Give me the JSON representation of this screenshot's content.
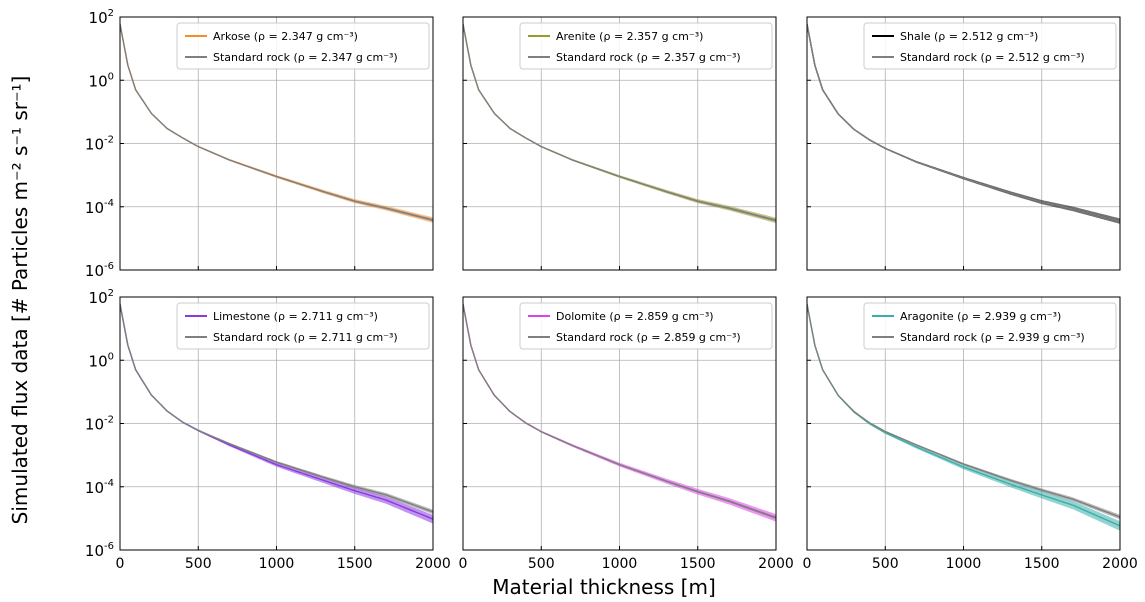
{
  "figure": {
    "ylabel": "Simulated flux data [# Particles m⁻² s⁻¹ sr⁻¹]",
    "xlabel": "Material thickness [m]"
  },
  "chart_data": [
    {
      "type": "line",
      "panel": "top-left",
      "x": [
        0,
        50,
        100,
        200,
        300,
        400,
        500,
        700,
        1000,
        1300,
        1500,
        1700,
        2000
      ],
      "xlim": [
        0,
        2000
      ],
      "ylim": [
        1e-06,
        100
      ],
      "yscale": "log",
      "grid": true,
      "legend_position": "top-right",
      "xticks": [
        "0",
        "500",
        "1000",
        "1500",
        "2000"
      ],
      "yticks": [
        {
          "base": "10",
          "exp": "2"
        },
        {
          "base": "10",
          "exp": "0"
        },
        {
          "base": "10",
          "exp": "-2"
        },
        {
          "base": "10",
          "exp": "-4"
        },
        {
          "base": "10",
          "exp": "-6"
        }
      ],
      "series": [
        {
          "name": "Arkose (ρ = 2.347 g cm⁻³)",
          "color": "#f28e2b",
          "values": [
            60,
            3,
            0.5,
            0.09,
            0.03,
            0.015,
            0.008,
            0.003,
            0.0009,
            0.0003,
            0.00015,
            9e-05,
            3.8e-05
          ],
          "band": [
            0.82,
            1.22
          ]
        },
        {
          "name": "Standard rock (ρ = 2.347 g cm⁻³)",
          "color": "#7f7f7f",
          "values": [
            60,
            3,
            0.5,
            0.09,
            0.03,
            0.015,
            0.008,
            0.003,
            0.0009,
            0.0003,
            0.00015,
            9e-05,
            3.8e-05
          ],
          "band": [
            0.9,
            1.1
          ]
        }
      ]
    },
    {
      "type": "line",
      "panel": "top-middle",
      "x": [
        0,
        50,
        100,
        200,
        300,
        400,
        500,
        700,
        1000,
        1300,
        1500,
        1700,
        2000
      ],
      "xlim": [
        0,
        2000
      ],
      "ylim": [
        1e-06,
        100
      ],
      "yscale": "log",
      "grid": true,
      "legend_position": "top-right",
      "xticks": [
        "0",
        "500",
        "1000",
        "1500",
        "2000"
      ],
      "series": [
        {
          "name": "Arenite (ρ = 2.357 g cm⁻³)",
          "color": "#9a9a2b",
          "values": [
            60,
            3,
            0.5,
            0.09,
            0.03,
            0.015,
            0.008,
            0.003,
            0.0009,
            0.0003,
            0.00015,
            9e-05,
            3.7e-05
          ],
          "band": [
            0.82,
            1.22
          ]
        },
        {
          "name": "Standard rock (ρ = 2.357 g cm⁻³)",
          "color": "#7f7f7f",
          "values": [
            60,
            3,
            0.5,
            0.09,
            0.03,
            0.015,
            0.008,
            0.003,
            0.0009,
            0.0003,
            0.00015,
            9e-05,
            3.7e-05
          ],
          "band": [
            0.9,
            1.1
          ]
        }
      ]
    },
    {
      "type": "line",
      "panel": "top-right",
      "x": [
        0,
        50,
        100,
        200,
        300,
        400,
        500,
        700,
        1000,
        1300,
        1500,
        1700,
        2000
      ],
      "xlim": [
        0,
        2000
      ],
      "ylim": [
        1e-06,
        100
      ],
      "yscale": "log",
      "grid": true,
      "legend_position": "top-right",
      "xticks": [
        "0",
        "500",
        "1000",
        "1500",
        "2000"
      ],
      "series": [
        {
          "name": "Shale (ρ = 2.512 g cm⁻³)",
          "color": "#000000",
          "values": [
            60,
            3,
            0.5,
            0.085,
            0.028,
            0.013,
            0.007,
            0.0026,
            0.0008,
            0.00027,
            0.00014,
            8.5e-05,
            3.5e-05
          ],
          "band": [
            0.82,
            1.22
          ]
        },
        {
          "name": "Standard rock (ρ = 2.512 g cm⁻³)",
          "color": "#7f7f7f",
          "values": [
            60,
            3,
            0.5,
            0.085,
            0.028,
            0.013,
            0.007,
            0.0026,
            0.0008,
            0.00027,
            0.00014,
            8.5e-05,
            3.5e-05
          ],
          "band": [
            0.9,
            1.1
          ]
        }
      ]
    },
    {
      "type": "line",
      "panel": "bottom-left",
      "x": [
        0,
        50,
        100,
        200,
        300,
        400,
        500,
        700,
        1000,
        1300,
        1500,
        1700,
        2000
      ],
      "xlim": [
        0,
        2000
      ],
      "ylim": [
        1e-06,
        100
      ],
      "yscale": "log",
      "grid": true,
      "legend_position": "top-right",
      "xticks": [
        "0",
        "500",
        "1000",
        "1500",
        "2000"
      ],
      "series": [
        {
          "name": "Limestone (ρ = 2.711 g cm⁻³)",
          "color": "#8a3be0",
          "values": [
            60,
            3,
            0.5,
            0.08,
            0.025,
            0.011,
            0.006,
            0.0021,
            0.0005,
            0.00016,
            7.5e-05,
            3.8e-05,
            9.5e-06
          ],
          "band": [
            0.72,
            1.35
          ]
        },
        {
          "name": "Standard rock (ρ = 2.711 g cm⁻³)",
          "color": "#7f7f7f",
          "values": [
            60,
            3,
            0.5,
            0.08,
            0.025,
            0.011,
            0.006,
            0.0023,
            0.0006,
            0.0002,
            0.0001,
            5.5e-05,
            1.6e-05
          ],
          "band": [
            0.85,
            1.18
          ]
        }
      ]
    },
    {
      "type": "line",
      "panel": "bottom-middle",
      "x": [
        0,
        50,
        100,
        200,
        300,
        400,
        500,
        700,
        1000,
        1300,
        1500,
        1700,
        2000
      ],
      "xlim": [
        0,
        2000
      ],
      "ylim": [
        1e-06,
        100
      ],
      "yscale": "log",
      "grid": true,
      "legend_position": "top-right",
      "xticks": [
        "0",
        "500",
        "1000",
        "1500",
        "2000"
      ],
      "series": [
        {
          "name": "Dolomite (ρ = 2.859 g cm⁻³)",
          "color": "#e040e8",
          "values": [
            60,
            3,
            0.5,
            0.078,
            0.024,
            0.0105,
            0.0055,
            0.002,
            0.0005,
            0.00015,
            7e-05,
            3.5e-05,
            1.05e-05
          ],
          "band": [
            0.75,
            1.3
          ]
        },
        {
          "name": "Standard rock (ρ = 2.859 g cm⁻³)",
          "color": "#7f7f7f",
          "values": [
            60,
            3,
            0.5,
            0.078,
            0.024,
            0.0105,
            0.0055,
            0.002,
            0.0005,
            0.00015,
            7e-05,
            3.5e-05,
            1.05e-05
          ],
          "band": [
            0.9,
            1.1
          ]
        }
      ]
    },
    {
      "type": "line",
      "panel": "bottom-right",
      "x": [
        0,
        50,
        100,
        200,
        300,
        400,
        500,
        700,
        1000,
        1300,
        1500,
        1700,
        2000
      ],
      "xlim": [
        0,
        2000
      ],
      "ylim": [
        1e-06,
        100
      ],
      "yscale": "log",
      "grid": true,
      "legend_position": "top-right",
      "xticks": [
        "0",
        "500",
        "1000",
        "1500",
        "2000"
      ],
      "series": [
        {
          "name": "Aragonite (ρ = 2.939 g cm⁻³)",
          "color": "#3aafa9",
          "values": [
            60,
            3,
            0.5,
            0.076,
            0.023,
            0.0098,
            0.0051,
            0.0018,
            0.00042,
            0.00012,
            5.5e-05,
            2.6e-05,
            5.8e-06
          ],
          "band": [
            0.7,
            1.4
          ]
        },
        {
          "name": "Standard rock (ρ = 2.939 g cm⁻³)",
          "color": "#7f7f7f",
          "values": [
            60,
            3,
            0.5,
            0.077,
            0.024,
            0.0105,
            0.0056,
            0.0021,
            0.00052,
            0.00016,
            7.8e-05,
            4e-05,
            1.1e-05
          ],
          "band": [
            0.85,
            1.18
          ]
        }
      ]
    }
  ]
}
